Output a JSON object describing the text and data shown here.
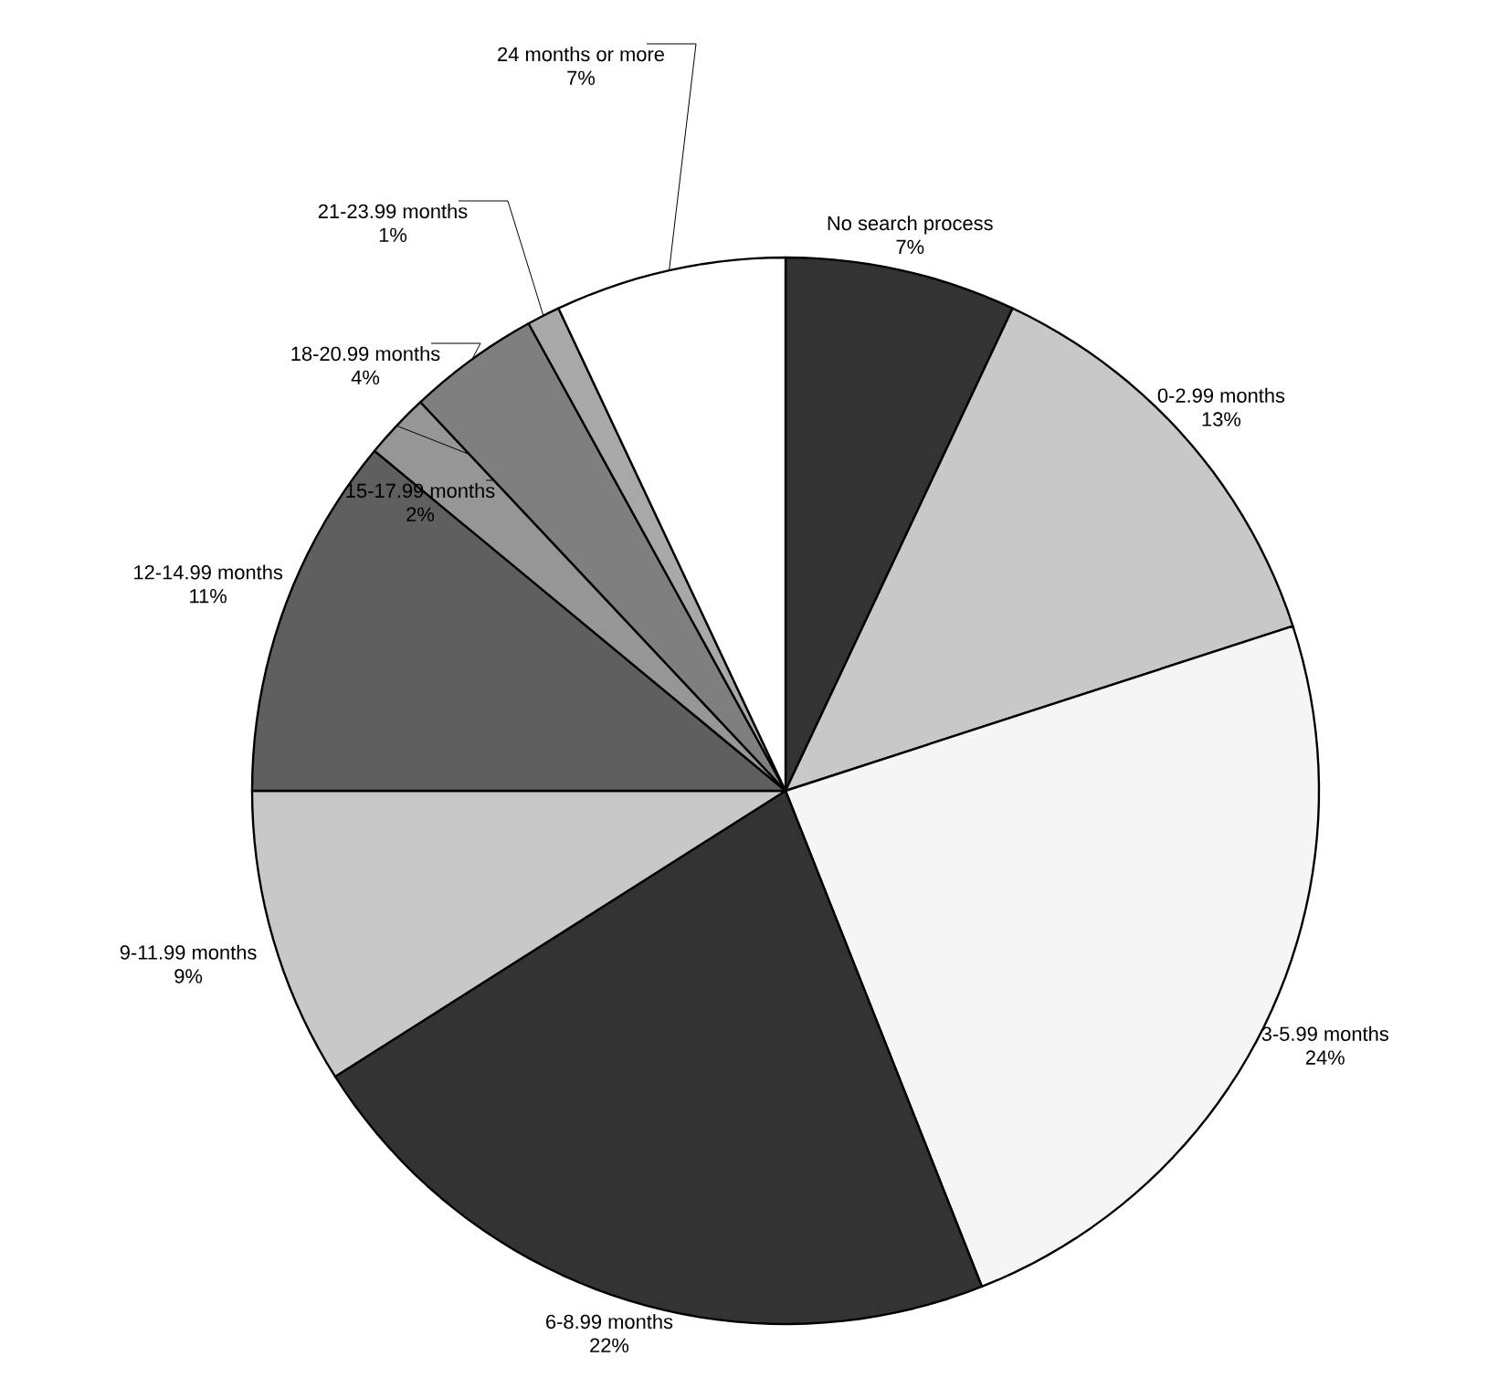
{
  "chart_data": {
    "type": "pie",
    "categories": [
      "No search process",
      "0-2.99 months",
      "3-5.99 months",
      "6-8.99 months",
      "9-11.99 months",
      "12-14.99 months",
      "15-17.99 months",
      "18-20.99 months",
      "21-23.99 months",
      "24 months or more"
    ],
    "values": [
      7,
      13,
      24,
      22,
      9,
      11,
      2,
      4,
      1,
      7
    ],
    "value_labels": [
      "7%",
      "13%",
      "24%",
      "22%",
      "9%",
      "11%",
      "2%",
      "4%",
      "1%",
      "7%"
    ],
    "colors": [
      "#333333",
      "#c8c8c8",
      "#f5f5f5",
      "#333333",
      "#c8c8c8",
      "#5f5f5f",
      "#969696",
      "#7f7f7f",
      "#a8a8a8",
      "#ffffff"
    ]
  }
}
